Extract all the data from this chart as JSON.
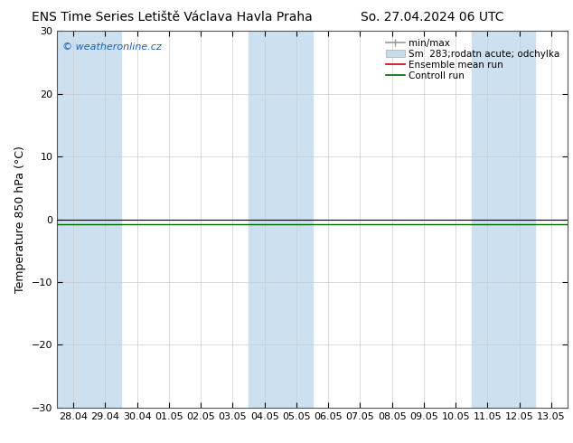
{
  "title_left": "ENS Time Series Letiště Václava Havla Praha",
  "title_right": "So. 27.04.2024 06 UTC",
  "ylabel": "Temperature 850 hPa (°C)",
  "watermark": "© weatheronline.cz",
  "ylim": [
    -30,
    30
  ],
  "yticks": [
    -30,
    -20,
    -10,
    0,
    10,
    20,
    30
  ],
  "x_labels": [
    "28.04",
    "29.04",
    "30.04",
    "01.05",
    "02.05",
    "03.05",
    "04.05",
    "05.05",
    "06.05",
    "07.05",
    "08.05",
    "09.05",
    "10.05",
    "11.05",
    "12.05",
    "13.05"
  ],
  "n_ticks": 16,
  "shaded_indices": [
    0,
    1,
    6,
    7,
    13,
    14
  ],
  "shade_color": "#cce0f0",
  "background_color": "#ffffff",
  "zero_line_color": "#000000",
  "control_run_color": "#006600",
  "ensemble_mean_color": "#cc0000",
  "legend_items": [
    {
      "label": "min/max",
      "color": "#999999",
      "type": "hline"
    },
    {
      "label": "Sm  283;rodatn acute; odchylka",
      "color": "#c8dce8",
      "type": "box"
    },
    {
      "label": "Ensemble mean run",
      "color": "#cc0000",
      "type": "line"
    },
    {
      "label": "Controll run",
      "color": "#006600",
      "type": "line"
    }
  ],
  "title_fontsize": 10,
  "ylabel_fontsize": 9,
  "tick_fontsize": 8,
  "legend_fontsize": 7.5,
  "watermark_fontsize": 8,
  "watermark_color": "#1a5fb4"
}
